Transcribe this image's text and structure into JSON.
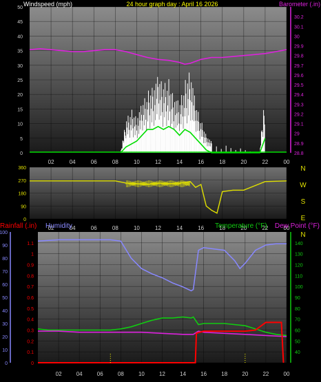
{
  "header": {
    "left": "Windspeed (mph)",
    "center": "24 hour graph day : April 16 2026",
    "right": "Barometer (.in)"
  },
  "panel3_header": {
    "rain": "Rainfall (.in)",
    "humidity": "Humidity",
    "temp": "Temperature (°F)",
    "dew": "Dew Point (°F)"
  },
  "colors": {
    "wind": "#ffffff",
    "gust_green": "#00dd00",
    "barometer": "#dd22dd",
    "direction": "#e0e000",
    "rain": "#ff0000",
    "humidity": "#8888ff",
    "temperature": "#11cc11",
    "dewpoint": "#dd22dd",
    "title": "#ffff00"
  },
  "x_ticks": [
    "02",
    "04",
    "06",
    "08",
    "10",
    "12",
    "14",
    "16",
    "18",
    "20",
    "22",
    "00"
  ],
  "direction_labels": [
    "N",
    "W",
    "S",
    "E",
    "N"
  ],
  "chart_data": [
    {
      "type": "line",
      "title": "24 hour graph day : April 16 2026",
      "xlabel": "",
      "ylabel": "Windspeed (mph)",
      "y2label": "Barometer (.in)",
      "x_ticks": [
        "02",
        "04",
        "06",
        "08",
        "10",
        "12",
        "14",
        "16",
        "18",
        "20",
        "22",
        "00"
      ],
      "ylim": [
        0,
        50
      ],
      "y_ticks": [
        0,
        5,
        10,
        15,
        20,
        25,
        30,
        35,
        40,
        45,
        50
      ],
      "y2lim": [
        28.8,
        30.3
      ],
      "y2_ticks": [
        28.8,
        28.9,
        29,
        29.1,
        29.2,
        29.3,
        29.4,
        29.5,
        29.6,
        29.7,
        29.8,
        29.9,
        30,
        30.1,
        30.2
      ],
      "grid": true,
      "series": [
        {
          "name": "Barometer",
          "axis": "right",
          "x": [
            0,
            1,
            2,
            3,
            4,
            5,
            6,
            7,
            8,
            9,
            10,
            11,
            12,
            13,
            14,
            14.5,
            15,
            15.5,
            16,
            17,
            18,
            19,
            20,
            21,
            22,
            23,
            24
          ],
          "y": [
            29.86,
            29.87,
            29.86,
            29.85,
            29.84,
            29.84,
            29.85,
            29.86,
            29.86,
            29.84,
            29.81,
            29.78,
            29.76,
            29.75,
            29.73,
            29.71,
            29.72,
            29.74,
            29.76,
            29.78,
            29.78,
            29.79,
            29.8,
            29.81,
            29.82,
            29.84,
            29.86
          ]
        },
        {
          "name": "Wind gust",
          "axis": "left",
          "x": [
            8.5,
            9,
            9.5,
            10,
            10.5,
            11,
            11.5,
            12,
            12.5,
            13,
            13.5,
            14,
            14.5,
            15,
            15.5,
            16,
            16.5,
            17,
            21.5,
            22
          ],
          "y": [
            0,
            12,
            16,
            14,
            18,
            22,
            26,
            28,
            25,
            27,
            22,
            18,
            26,
            33,
            18,
            12,
            7,
            4,
            0,
            26
          ]
        },
        {
          "name": "Wind average",
          "axis": "left",
          "x": [
            8.5,
            9,
            9.5,
            10,
            10.5,
            11,
            11.5,
            12,
            12.5,
            13,
            13.5,
            14,
            14.5,
            15,
            15.5,
            16,
            16.5,
            17,
            21.5,
            22
          ],
          "y": [
            0,
            2,
            3,
            4,
            6,
            8,
            8,
            9,
            8,
            9,
            8,
            6,
            8,
            7,
            5,
            3,
            1,
            0,
            0,
            5
          ]
        }
      ]
    },
    {
      "type": "line",
      "title": "",
      "ylabel": "Wind direction",
      "x_ticks": [
        "02",
        "04",
        "06",
        "08",
        "10",
        "12",
        "14",
        "16",
        "18",
        "20",
        "22",
        "00"
      ],
      "ylim": [
        0,
        360
      ],
      "y_ticks": [
        0,
        90,
        180,
        270,
        360
      ],
      "right_labels": [
        "N",
        "W",
        "S",
        "E",
        "N"
      ],
      "series": [
        {
          "name": "Direction",
          "x": [
            0,
            2,
            4,
            6,
            8,
            9,
            10,
            11,
            12,
            13,
            14,
            15,
            15.5,
            16,
            16.5,
            17,
            17.5,
            18,
            19,
            20,
            22,
            24
          ],
          "y": [
            265,
            265,
            265,
            265,
            265,
            250,
            245,
            240,
            250,
            245,
            250,
            260,
            220,
            240,
            90,
            60,
            40,
            190,
            200,
            200,
            260,
            265
          ]
        }
      ]
    },
    {
      "type": "line",
      "title": "",
      "ylabel": "Rainfall (.in)",
      "x_ticks": [
        "02",
        "04",
        "06",
        "08",
        "10",
        "12",
        "14",
        "16",
        "18",
        "20",
        "22",
        "00"
      ],
      "rain_lim": [
        0,
        1.2
      ],
      "rain_ticks": [
        0,
        0.1,
        0.2,
        0.3,
        0.4,
        0.5,
        0.6,
        0.7,
        0.8,
        0.9,
        1,
        1.1
      ],
      "humidity_lim": [
        0,
        100
      ],
      "humidity_ticks": [
        0,
        10,
        20,
        30,
        40,
        50,
        60,
        70,
        80,
        90,
        100
      ],
      "temp_lim": [
        30,
        150
      ],
      "temp_ticks": [
        40,
        50,
        60,
        70,
        80,
        90,
        100,
        110,
        120,
        130,
        140
      ],
      "series": [
        {
          "name": "Humidity",
          "axis": "humidity",
          "x": [
            0,
            2,
            4,
            6,
            7,
            8,
            9,
            10,
            11,
            12,
            13,
            14,
            14.8,
            15,
            15.5,
            16,
            17,
            18,
            19,
            19.5,
            20,
            21,
            22,
            23,
            24
          ],
          "y": [
            93,
            94,
            94,
            94,
            94,
            93,
            80,
            72,
            68,
            65,
            61,
            58,
            55,
            56,
            86,
            88,
            87,
            86,
            78,
            72,
            76,
            86,
            90,
            91,
            91
          ]
        },
        {
          "name": "Rainfall",
          "axis": "rain",
          "x": [
            0,
            15.2,
            15.3,
            16,
            18,
            20,
            21,
            22,
            23.5,
            23.7
          ],
          "y": [
            0,
            0,
            0.27,
            0.29,
            0.29,
            0.29,
            0.3,
            0.37,
            0.37,
            0
          ]
        },
        {
          "name": "Temperature",
          "axis": "temp",
          "x": [
            0,
            1,
            2,
            4,
            6,
            7,
            8,
            9,
            10,
            11,
            12,
            13,
            14,
            14.8,
            15,
            15.5,
            16,
            18,
            20,
            21,
            22,
            23,
            24
          ],
          "y": [
            61,
            60,
            60,
            60,
            60,
            60,
            61,
            63,
            66,
            69,
            71,
            71,
            72,
            71,
            72,
            65,
            66,
            66,
            64,
            61,
            58,
            56,
            55
          ]
        },
        {
          "name": "Dew Point",
          "axis": "temp",
          "x": [
            0,
            2,
            4,
            6,
            8,
            10,
            12,
            14,
            15,
            15.5,
            16,
            18,
            20,
            22,
            24
          ],
          "y": [
            59,
            59,
            58,
            58,
            58,
            58,
            57,
            56,
            56,
            59,
            58,
            57,
            56,
            55,
            54
          ]
        }
      ]
    }
  ]
}
